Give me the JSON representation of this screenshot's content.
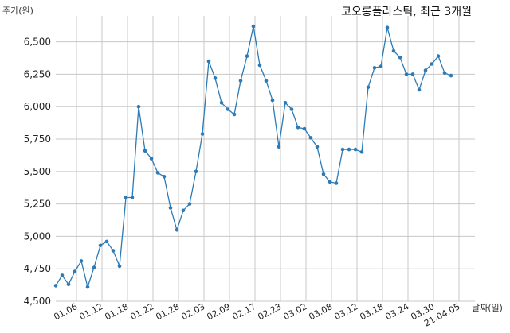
{
  "chart_data": {
    "type": "line",
    "title": "코오롱플라스틱, 최근 3개월",
    "ylabel": "주가(원)",
    "xlabel": "날짜(일)",
    "ylim": [
      4500,
      6700
    ],
    "yticks": [
      4500,
      4750,
      5000,
      5250,
      5500,
      5750,
      6000,
      6250,
      6500
    ],
    "ytick_labels": [
      "4,500",
      "4,750",
      "5,000",
      "5,250",
      "5,500",
      "5,750",
      "6,000",
      "6,250",
      "6,500"
    ],
    "xticks": [
      {
        "label": "01.06",
        "index": 3
      },
      {
        "label": "01.12",
        "index": 7
      },
      {
        "label": "01.18",
        "index": 11
      },
      {
        "label": "01.22",
        "index": 15
      },
      {
        "label": "01.28",
        "index": 19
      },
      {
        "label": "02.03",
        "index": 23
      },
      {
        "label": "02.09",
        "index": 27
      },
      {
        "label": "02.17",
        "index": 31
      },
      {
        "label": "02.23",
        "index": 35
      },
      {
        "label": "03.02",
        "index": 39
      },
      {
        "label": "03.08",
        "index": 43
      },
      {
        "label": "03.12",
        "index": 47
      },
      {
        "label": "03.18",
        "index": 51
      },
      {
        "label": "03.24",
        "index": 55
      },
      {
        "label": "03.30",
        "index": 59
      },
      {
        "label": "21.04.05",
        "index": 63
      }
    ],
    "grid": true,
    "series": [
      {
        "values": [
          4620,
          4700,
          4630,
          4730,
          4810,
          4610,
          4760,
          4930,
          4960,
          4890,
          4770,
          5300,
          5300,
          6000,
          5660,
          5600,
          5490,
          5460,
          5220,
          5050,
          5200,
          5250,
          5500,
          5790,
          6350,
          6220,
          6030,
          5980,
          5940,
          6200,
          6390,
          6620,
          6320,
          6200,
          6050,
          5690,
          6030,
          5980,
          5840,
          5830,
          5760,
          5690,
          5480,
          5420,
          5410,
          5670,
          5670,
          5670,
          5650,
          6150,
          6300,
          6310,
          6610,
          6430,
          6380,
          6250,
          6250,
          6130,
          6280,
          6330,
          6390,
          6260,
          6240
        ]
      }
    ]
  }
}
